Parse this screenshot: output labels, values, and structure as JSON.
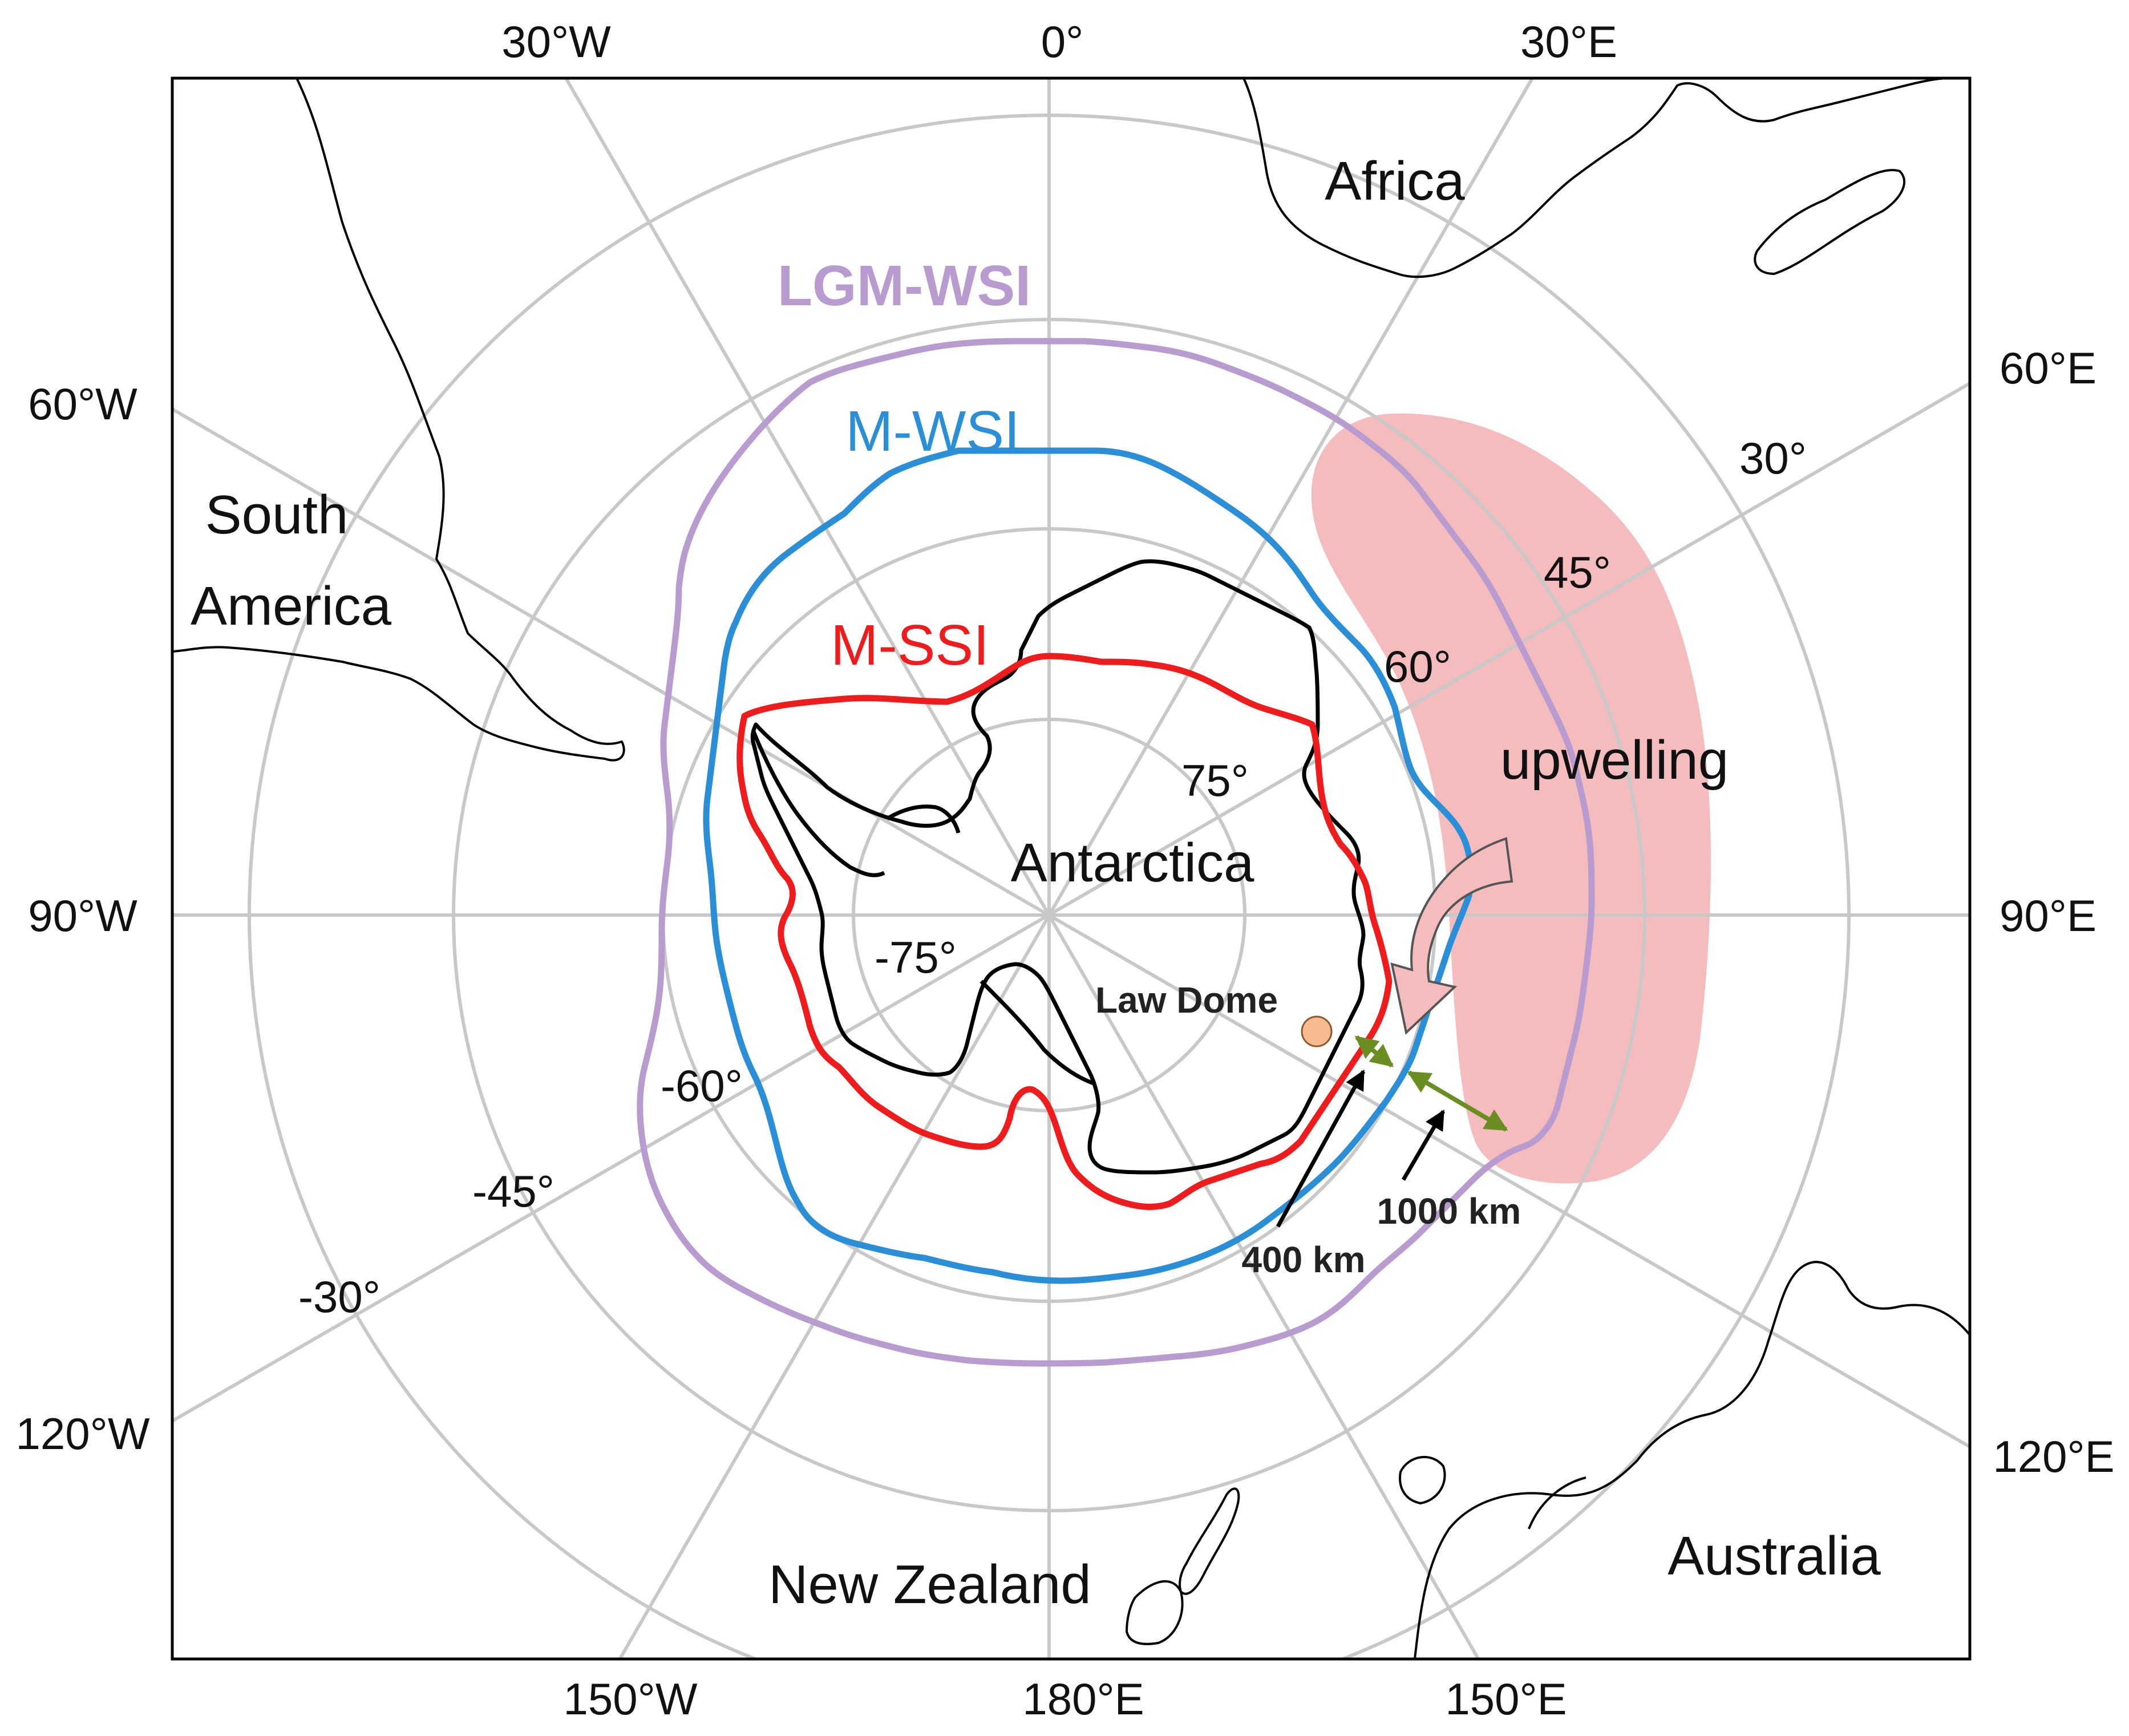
{
  "labels": {
    "lon": {
      "w30": "30°W",
      "zero": "0°",
      "e30": "30°E",
      "w60": "60°W",
      "e60": "60°E",
      "w90": "90°W",
      "e90": "90°E",
      "w120": "120°W",
      "e120": "120°E",
      "w150": "150°W",
      "e180": "180°E",
      "e150": "150°E"
    },
    "lat": {
      "p30": "30°",
      "p45": "45°",
      "p60": "60°",
      "p75": "75°",
      "m75": "-75°",
      "m60": "-60°",
      "m45": "-45°",
      "m30": "-30°"
    },
    "places": {
      "africa": "Africa",
      "south_america_line1": "South",
      "south_america_line2": "America",
      "antarctica": "Antarctica",
      "new_zealand": "New Zealand",
      "australia": "Australia",
      "law_dome": "Law Dome"
    },
    "contours": {
      "lgm_wsi": "LGM-WSI",
      "m_wsi": "M-WSI",
      "m_ssi": "M-SSI"
    },
    "annotations": {
      "upwelling": "upwelling",
      "d400": "400 km",
      "d1000": "1000 km"
    }
  },
  "colors": {
    "lgm_wsi": "#b89ccf",
    "m_wsi": "#2b8fd8",
    "m_ssi": "#ee1c1c",
    "upwelling_fill": "#f4bcbc",
    "law_dome_fill": "#f7b98e",
    "distance_arrow": "#6b8e23",
    "graticule": "#c8c8c8"
  }
}
